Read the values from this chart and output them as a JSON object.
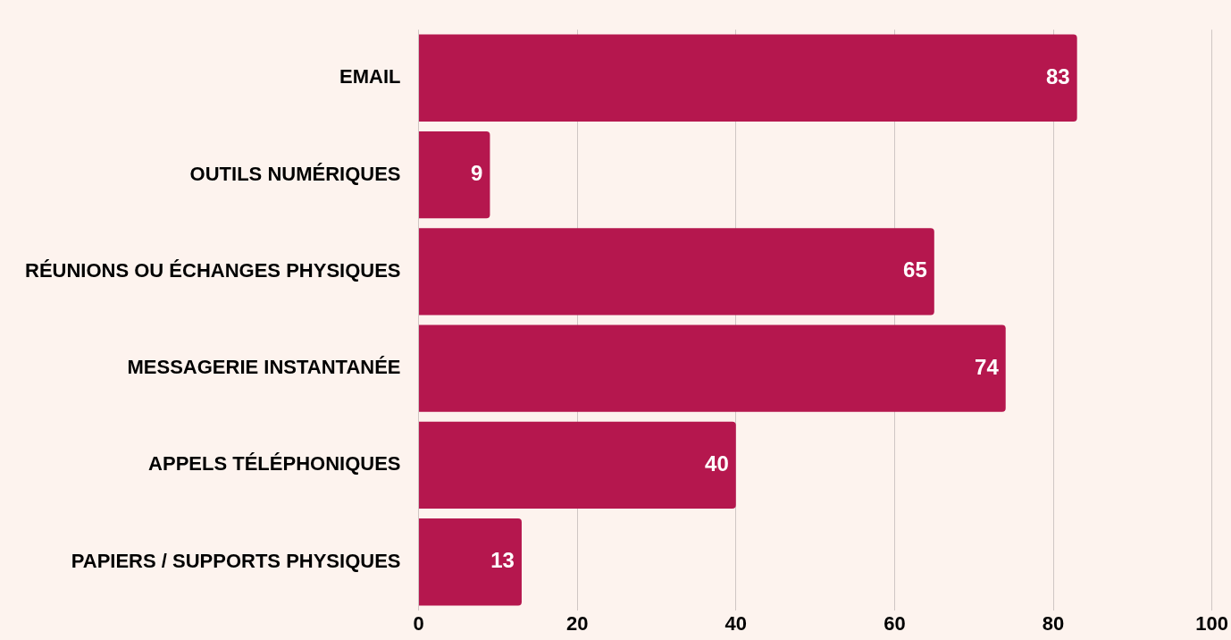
{
  "chart_data": {
    "type": "bar",
    "orientation": "horizontal",
    "categories": [
      "EMAIL",
      "OUTILS NUMÉRIQUES",
      "RÉUNIONS OU ÉCHANGES PHYSIQUES",
      "MESSAGERIE INSTANTANÉE",
      "APPELS TÉLÉPHONIQUES",
      "PAPIERS / SUPPORTS PHYSIQUES"
    ],
    "values": [
      83,
      9,
      65,
      74,
      40,
      13
    ],
    "color": "#b5174e",
    "xlim": [
      0,
      100
    ],
    "xticks": [
      0,
      20,
      40,
      60,
      80,
      100
    ],
    "grid": "x",
    "legend": false,
    "data_labels": true
  }
}
